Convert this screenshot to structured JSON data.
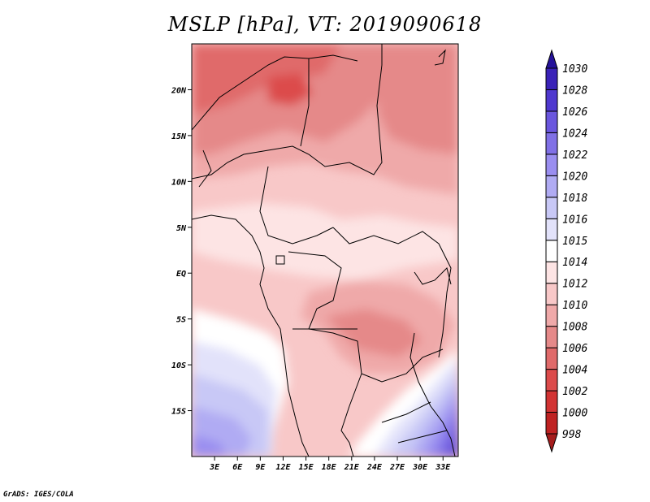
{
  "title": "MSLP [hPa], VT: 2019090618",
  "credit": "GrADS: IGES/COLA",
  "lon_ticks": [
    "3E",
    "6E",
    "9E",
    "12E",
    "15E",
    "18E",
    "21E",
    "24E",
    "27E",
    "30E",
    "33E"
  ],
  "lat_ticks": [
    "20N",
    "15N",
    "10N",
    "5N",
    "EQ",
    "5S",
    "10S",
    "15S"
  ],
  "colorbar": {
    "levels": [
      "998",
      "1000",
      "1002",
      "1004",
      "1006",
      "1008",
      "1010",
      "1012",
      "1014",
      "1015",
      "1016",
      "1018",
      "1020",
      "1022",
      "1024",
      "1026",
      "1028",
      "1030"
    ],
    "colors": [
      "#a51c1c",
      "#bf2222",
      "#d23333",
      "#dc4b4b",
      "#e06a6a",
      "#e58989",
      "#efa9a9",
      "#f8c8c8",
      "#fde4e4",
      "#ffffff",
      "#e2e2fa",
      "#c8c8f6",
      "#b0abf3",
      "#9a8ef0",
      "#8070e6",
      "#6a56de",
      "#4f38cf",
      "#3a22b8",
      "#25129a"
    ]
  },
  "map_data": {
    "variable": "MSLP",
    "unit": "hPa",
    "valid_time": "2019090618",
    "lon_range": [
      0,
      35
    ],
    "lat_range": [
      -20,
      25
    ]
  }
}
